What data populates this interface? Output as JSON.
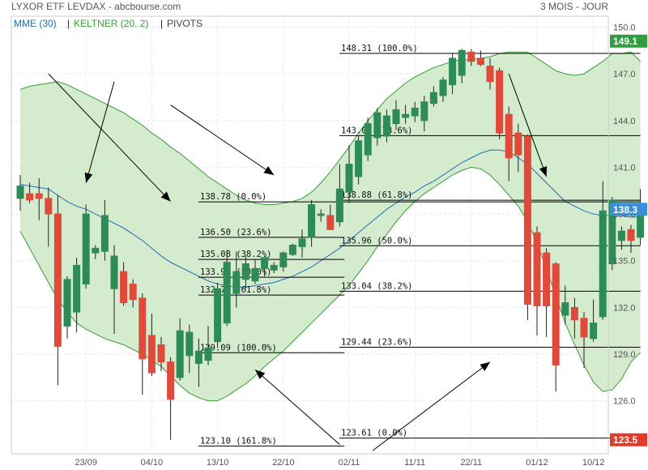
{
  "header": {
    "title": "LYXOR ETF LEVDAX - abcbourse.com",
    "period": "3 MOIS - JOUR",
    "legend": [
      {
        "label": "MME (30)",
        "color": "#1f6fb2"
      },
      {
        "label": "KELTNER (20, 2)",
        "color": "#3a9a3a"
      },
      {
        "label": "PIVOTS",
        "color": "#444444"
      }
    ]
  },
  "colors": {
    "up": "#2e8b57",
    "down": "#e04a3a",
    "keltner_fill": "#cde8c6",
    "keltner_line": "#3a9a3a",
    "mme_line": "#1f6fb2",
    "fib_line": "#000000",
    "badge_green": "#2e9e3e",
    "badge_red": "#e03a2a",
    "badge_blue": "#3b8fd8"
  },
  "chart_data": {
    "type": "candlestick",
    "ylim": [
      122.6,
      150.7
    ],
    "yticks": [
      "150.0",
      "147.0",
      "144.0",
      "141.0",
      "138.0",
      "135.0",
      "132.0",
      "129.0",
      "126.0"
    ],
    "xticks": [
      {
        "i": 7,
        "label": "23/09"
      },
      {
        "i": 14,
        "label": "04/10"
      },
      {
        "i": 21,
        "label": "13/10"
      },
      {
        "i": 28,
        "label": "22/10"
      },
      {
        "i": 35,
        "label": "02/11"
      },
      {
        "i": 42,
        "label": "11/11"
      },
      {
        "i": 48,
        "label": "22/11"
      },
      {
        "i": 55,
        "label": "01/12"
      },
      {
        "i": 61,
        "label": "10/12"
      }
    ],
    "candles": [
      {
        "o": 139.0,
        "h": 140.5,
        "l": 138.2,
        "c": 139.8
      },
      {
        "o": 139.3,
        "h": 140.0,
        "l": 138.7,
        "c": 138.9
      },
      {
        "o": 139.3,
        "h": 140.3,
        "l": 137.6,
        "c": 139.0
      },
      {
        "o": 139.0,
        "h": 139.7,
        "l": 135.9,
        "c": 138.0
      },
      {
        "o": 138.0,
        "h": 139.2,
        "l": 127.0,
        "c": 129.5
      },
      {
        "o": 130.8,
        "h": 134.0,
        "l": 130.0,
        "c": 133.8
      },
      {
        "o": 131.7,
        "h": 135.2,
        "l": 130.4,
        "c": 134.7
      },
      {
        "o": 133.5,
        "h": 138.6,
        "l": 133.2,
        "c": 138.0
      },
      {
        "o": 135.5,
        "h": 136.0,
        "l": 135.1,
        "c": 135.8
      },
      {
        "o": 135.6,
        "h": 138.9,
        "l": 135.0,
        "c": 137.9
      },
      {
        "o": 133.2,
        "h": 136.0,
        "l": 130.3,
        "c": 135.3
      },
      {
        "o": 134.3,
        "h": 134.9,
        "l": 132.1,
        "c": 132.3
      },
      {
        "o": 133.5,
        "h": 133.8,
        "l": 132.0,
        "c": 132.5
      },
      {
        "o": 132.6,
        "h": 132.9,
        "l": 126.4,
        "c": 128.7
      },
      {
        "o": 130.2,
        "h": 131.6,
        "l": 127.6,
        "c": 127.8
      },
      {
        "o": 129.6,
        "h": 130.1,
        "l": 127.9,
        "c": 128.5
      },
      {
        "o": 128.5,
        "h": 128.8,
        "l": 123.5,
        "c": 126.1
      },
      {
        "o": 127.5,
        "h": 131.3,
        "l": 127.3,
        "c": 130.5
      },
      {
        "o": 128.9,
        "h": 130.9,
        "l": 127.8,
        "c": 130.4
      },
      {
        "o": 128.4,
        "h": 130.0,
        "l": 126.9,
        "c": 129.2
      },
      {
        "o": 128.6,
        "h": 130.8,
        "l": 128.3,
        "c": 129.4
      },
      {
        "o": 129.8,
        "h": 133.6,
        "l": 129.4,
        "c": 133.2
      },
      {
        "o": 131.0,
        "h": 135.7,
        "l": 130.8,
        "c": 134.9
      },
      {
        "o": 132.9,
        "h": 135.6,
        "l": 132.0,
        "c": 134.3
      },
      {
        "o": 133.8,
        "h": 135.3,
        "l": 133.2,
        "c": 134.8
      },
      {
        "o": 133.7,
        "h": 135.1,
        "l": 133.5,
        "c": 134.5
      },
      {
        "o": 134.5,
        "h": 135.2,
        "l": 134.0,
        "c": 135.2
      },
      {
        "o": 134.4,
        "h": 134.9,
        "l": 134.2,
        "c": 134.7
      },
      {
        "o": 134.6,
        "h": 135.6,
        "l": 134.3,
        "c": 135.5
      },
      {
        "o": 135.4,
        "h": 136.1,
        "l": 135.3,
        "c": 136.0
      },
      {
        "o": 135.9,
        "h": 137.0,
        "l": 135.2,
        "c": 136.4
      },
      {
        "o": 136.5,
        "h": 138.9,
        "l": 135.9,
        "c": 138.6
      },
      {
        "o": 137.9,
        "h": 138.3,
        "l": 137.5,
        "c": 138.0
      },
      {
        "o": 137.9,
        "h": 138.6,
        "l": 137.0,
        "c": 137.0
      },
      {
        "o": 137.5,
        "h": 141.2,
        "l": 137.2,
        "c": 139.6
      },
      {
        "o": 139.4,
        "h": 142.4,
        "l": 138.7,
        "c": 141.2
      },
      {
        "o": 140.4,
        "h": 143.0,
        "l": 139.9,
        "c": 142.7
      },
      {
        "o": 141.8,
        "h": 144.2,
        "l": 141.4,
        "c": 143.8
      },
      {
        "o": 142.9,
        "h": 144.8,
        "l": 142.4,
        "c": 144.5
      },
      {
        "o": 143.0,
        "h": 144.7,
        "l": 142.6,
        "c": 144.3
      },
      {
        "o": 143.8,
        "h": 145.3,
        "l": 143.4,
        "c": 144.7
      },
      {
        "o": 144.2,
        "h": 145.0,
        "l": 143.8,
        "c": 144.4
      },
      {
        "o": 144.3,
        "h": 145.2,
        "l": 143.9,
        "c": 144.8
      },
      {
        "o": 144.0,
        "h": 145.6,
        "l": 143.3,
        "c": 145.2
      },
      {
        "o": 145.1,
        "h": 146.2,
        "l": 144.9,
        "c": 145.8
      },
      {
        "o": 145.6,
        "h": 146.8,
        "l": 145.2,
        "c": 146.6
      },
      {
        "o": 146.3,
        "h": 148.3,
        "l": 145.7,
        "c": 148.0
      },
      {
        "o": 146.9,
        "h": 148.6,
        "l": 146.4,
        "c": 148.5
      },
      {
        "o": 148.4,
        "h": 148.6,
        "l": 147.5,
        "c": 147.8
      },
      {
        "o": 148.0,
        "h": 148.5,
        "l": 147.5,
        "c": 147.6
      },
      {
        "o": 147.5,
        "h": 148.0,
        "l": 146.0,
        "c": 146.5
      },
      {
        "o": 147.2,
        "h": 147.4,
        "l": 142.8,
        "c": 143.2
      },
      {
        "o": 144.4,
        "h": 144.9,
        "l": 140.1,
        "c": 141.6
      },
      {
        "o": 143.2,
        "h": 143.8,
        "l": 140.7,
        "c": 141.8
      },
      {
        "o": 143.0,
        "h": 143.1,
        "l": 131.2,
        "c": 132.2
      },
      {
        "o": 136.8,
        "h": 137.2,
        "l": 130.2,
        "c": 132.1
      },
      {
        "o": 135.5,
        "h": 135.8,
        "l": 130.1,
        "c": 132.1
      },
      {
        "o": 134.8,
        "h": 134.9,
        "l": 126.6,
        "c": 128.3
      },
      {
        "o": 131.5,
        "h": 133.4,
        "l": 130.9,
        "c": 132.3
      },
      {
        "o": 132.0,
        "h": 132.6,
        "l": 130.0,
        "c": 131.2
      },
      {
        "o": 131.3,
        "h": 131.7,
        "l": 128.1,
        "c": 130.1
      },
      {
        "o": 130.0,
        "h": 132.5,
        "l": 129.8,
        "c": 131.0
      },
      {
        "o": 131.4,
        "h": 140.1,
        "l": 131.2,
        "c": 138.2
      },
      {
        "o": 134.8,
        "h": 139.1,
        "l": 134.4,
        "c": 138.9
      },
      {
        "o": 136.3,
        "h": 137.2,
        "l": 135.7,
        "c": 136.9
      },
      {
        "o": 137.0,
        "h": 137.3,
        "l": 135.5,
        "c": 136.3
      },
      {
        "o": 136.5,
        "h": 139.6,
        "l": 136.0,
        "c": 138.3
      }
    ],
    "keltner_upper": [
      146.0,
      146.2,
      146.3,
      146.4,
      146.5,
      146.3,
      146.0,
      145.7,
      145.4,
      145.1,
      144.8,
      144.5,
      144.1,
      143.7,
      143.2,
      142.8,
      142.3,
      141.9,
      141.4,
      140.9,
      140.4,
      140.0,
      139.6,
      139.2,
      138.9,
      138.7,
      138.6,
      138.6,
      138.7,
      138.8,
      139.0,
      139.4,
      140.0,
      140.7,
      141.5,
      142.3,
      143.2,
      144.0,
      144.7,
      145.4,
      145.9,
      146.4,
      146.8,
      147.1,
      147.4,
      147.6,
      147.8,
      147.9,
      147.9,
      148.0,
      148.1,
      148.3,
      148.4,
      148.4,
      148.4,
      148.0,
      147.6,
      147.2,
      147.0,
      146.9,
      147.0,
      147.4,
      147.8,
      148.3,
      148.3,
      148.4,
      147.8
    ],
    "keltner_lower": [
      136.9,
      135.8,
      134.7,
      133.6,
      132.5,
      131.7,
      131.0,
      130.6,
      130.3,
      130.0,
      129.8,
      129.6,
      129.3,
      129.0,
      128.6,
      128.2,
      127.6,
      127.0,
      126.5,
      126.2,
      126.0,
      126.0,
      126.3,
      126.7,
      127.1,
      127.6,
      128.2,
      128.7,
      129.2,
      129.8,
      130.4,
      131.0,
      131.6,
      132.2,
      132.8,
      133.4,
      134.2,
      135.0,
      135.9,
      136.7,
      137.5,
      138.2,
      138.8,
      139.3,
      139.7,
      140.1,
      140.5,
      140.8,
      141.0,
      140.9,
      140.5,
      139.9,
      139.2,
      138.5,
      137.5,
      136.1,
      134.5,
      132.7,
      131.0,
      129.6,
      128.3,
      127.2,
      126.6,
      126.7,
      127.4,
      128.5,
      129.1
    ],
    "mme": [
      139.9,
      139.8,
      139.7,
      139.6,
      139.2,
      138.8,
      138.5,
      138.3,
      138.0,
      137.7,
      137.4,
      137.1,
      136.7,
      136.3,
      135.8,
      135.3,
      134.9,
      134.6,
      134.3,
      134.0,
      133.7,
      133.5,
      133.4,
      133.3,
      133.3,
      133.4,
      133.5,
      133.6,
      133.8,
      134.0,
      134.3,
      134.6,
      135.0,
      135.4,
      135.8,
      136.3,
      136.8,
      137.3,
      137.8,
      138.3,
      138.7,
      139.1,
      139.4,
      139.8,
      140.1,
      140.5,
      140.9,
      141.3,
      141.6,
      141.9,
      142.1,
      142.1,
      142.0,
      141.6,
      141.2,
      140.6,
      140.0,
      139.4,
      138.8,
      138.5,
      138.2,
      138.0,
      137.9,
      137.9,
      137.9,
      137.8,
      137.8
    ],
    "fib_levels": [
      {
        "price": 138.78,
        "label": "138.78  (0.0%)",
        "x0": 20,
        "x1": 66
      },
      {
        "price": 136.5,
        "label": "136.50  (23.6%)",
        "x0": 20,
        "x1": 34.5
      },
      {
        "price": 135.08,
        "label": "135.08  (38.2%)",
        "x0": 20,
        "x1": 34.5
      },
      {
        "price": 133.94,
        "label": "133.94  (50.0%)",
        "x0": 20,
        "x1": 34.5
      },
      {
        "price": 132.79,
        "label": "132.79  (61.8%)",
        "x0": 20,
        "x1": 34.5
      },
      {
        "price": 129.09,
        "label": "129.09  (100.0%)",
        "x0": 20,
        "x1": 34.5
      },
      {
        "price": 123.1,
        "label": "123.10  (161.8%)",
        "x0": 20,
        "x1": 34.5
      },
      {
        "price": 148.31,
        "label": "148.31  (100.0%)",
        "x0": 35,
        "x1": 66
      },
      {
        "price": 143.03,
        "label": "143.03  (78.6%)",
        "x0": 35,
        "x1": 66
      },
      {
        "price": 138.88,
        "label": "138.88  (61.8%)",
        "x0": 35,
        "x1": 66
      },
      {
        "price": 135.96,
        "label": "135.96  (50.0%)",
        "x0": 35,
        "x1": 66
      },
      {
        "price": 133.04,
        "label": "133.04  (38.2%)",
        "x0": 35,
        "x1": 66
      },
      {
        "price": 129.44,
        "label": "129.44  (23.6%)",
        "x0": 35,
        "x1": 66
      },
      {
        "price": 123.61,
        "label": "123.61  (0.0%)",
        "x0": 35,
        "x1": 66
      }
    ],
    "arrows": [
      {
        "from": [
          3,
          147.0
        ],
        "to": [
          16,
          138.8
        ]
      },
      {
        "from": [
          10,
          146.5
        ],
        "to": [
          7,
          140.0
        ]
      },
      {
        "from": [
          16,
          145.0
        ],
        "to": [
          27,
          140.5
        ]
      },
      {
        "from": [
          34,
          123.2
        ],
        "to": [
          25,
          128.0
        ]
      },
      {
        "from": [
          37.5,
          122.8
        ],
        "to": [
          50,
          128.5
        ]
      },
      {
        "from": [
          52,
          147.0
        ],
        "to": [
          56,
          140.4
        ]
      }
    ],
    "badges": [
      {
        "price": 149.1,
        "label": "149.1",
        "color": "#2e9e3e"
      },
      {
        "price": 138.3,
        "label": "138.3",
        "color": "#3b8fd8"
      },
      {
        "price": 123.5,
        "label": "123.5",
        "color": "#e03a2a"
      }
    ]
  }
}
